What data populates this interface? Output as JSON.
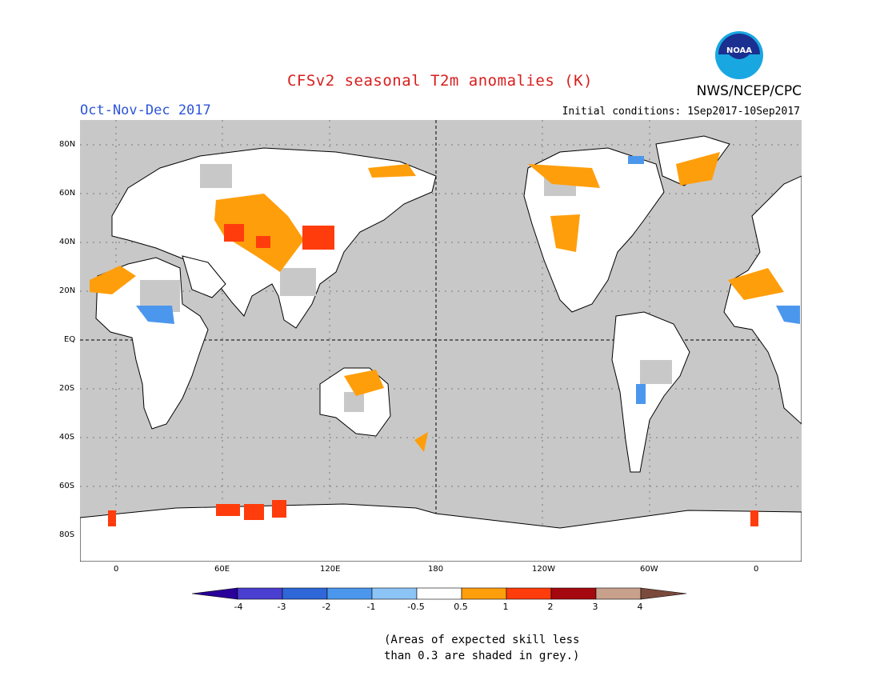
{
  "title": "CFSv2 seasonal T2m anomalies (K)",
  "agency": "NWS/NCEP/CPC",
  "logo_text": "NOAA",
  "period": "Oct-Nov-Dec 2017",
  "initial_conditions": "Initial conditions: 1Sep2017-10Sep2017",
  "lat_labels": [
    "80N",
    "60N",
    "40N",
    "20N",
    "EQ",
    "20S",
    "40S",
    "60S",
    "80S"
  ],
  "lon_labels": [
    "0",
    "60E",
    "120E",
    "180",
    "120W",
    "60W",
    "0"
  ],
  "colorbar": {
    "labels": [
      "-4",
      "-3",
      "-2",
      "-1",
      "-0.5",
      "0.5",
      "1",
      "2",
      "3",
      "4"
    ],
    "colors": [
      "#2a009a",
      "#4a3fd0",
      "#2f66d8",
      "#4c97ee",
      "#8cc4f5",
      "#ffffff",
      "#ff9e0b",
      "#ff3c0c",
      "#a5080e",
      "#c8a08c",
      "#7a4a3c"
    ]
  },
  "note_line1": "(Areas of expected skill less",
  "note_line2": "than 0.3 are shaded in grey.)",
  "colors": {
    "ocean_grey": "#c8c8c8",
    "land_white": "#ffffff",
    "title_red": "#d81e1e",
    "period_blue": "#2e55d8"
  }
}
